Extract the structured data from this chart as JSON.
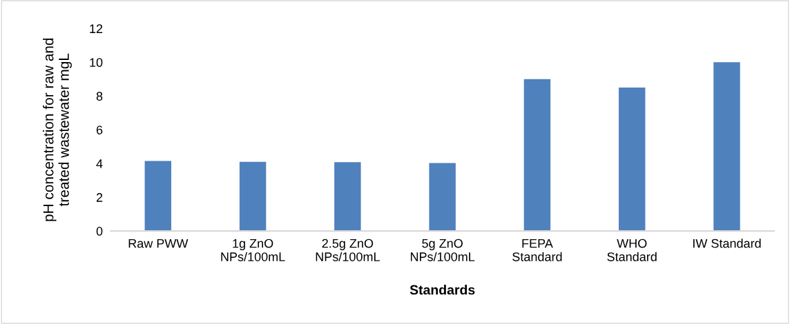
{
  "chart_data": {
    "type": "bar",
    "categories": [
      "Raw PWW",
      "1g ZnO\nNPs/100mL",
      "2.5g ZnO\nNPs/100mL",
      "5g ZnO\nNPs/100mL",
      "FEPA\nStandard",
      "WHO\nStandard",
      "IW Standard"
    ],
    "values": [
      4.15,
      4.1,
      4.08,
      4.03,
      9,
      8.5,
      10
    ],
    "color": "#4f81bd",
    "xlabel": "Standards",
    "ylabel": "pH concentration for raw and\ntreated wastewater mgL",
    "ylim": [
      0,
      12
    ],
    "yticks": [
      0,
      2,
      4,
      6,
      8,
      10,
      12
    ],
    "grid": false
  }
}
